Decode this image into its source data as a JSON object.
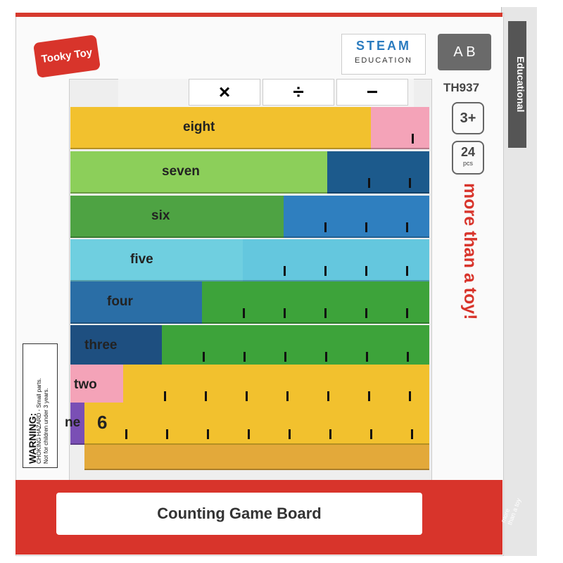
{
  "brand": "Tooky Toy",
  "badge": {
    "title": "STEAM",
    "subtitle": "EDUCATION"
  },
  "model": "TH937",
  "age": "3+",
  "pieces": {
    "count": 24,
    "unit": "pcs"
  },
  "side_label": "Educational",
  "slogan": "more than a toy!",
  "operators": [
    "×",
    "÷",
    "−"
  ],
  "rods": [
    "eight",
    "seven",
    "six",
    "five",
    "four",
    "three",
    "two",
    "ne"
  ],
  "rod_numeral": "6",
  "warning": {
    "title": "WARNING:",
    "line1": "CHOKING HAZARD - Small parts.",
    "line2": "Not for children under 3 years."
  },
  "product_name": "Counting Game Board",
  "corner_slogan": "more than a toy"
}
